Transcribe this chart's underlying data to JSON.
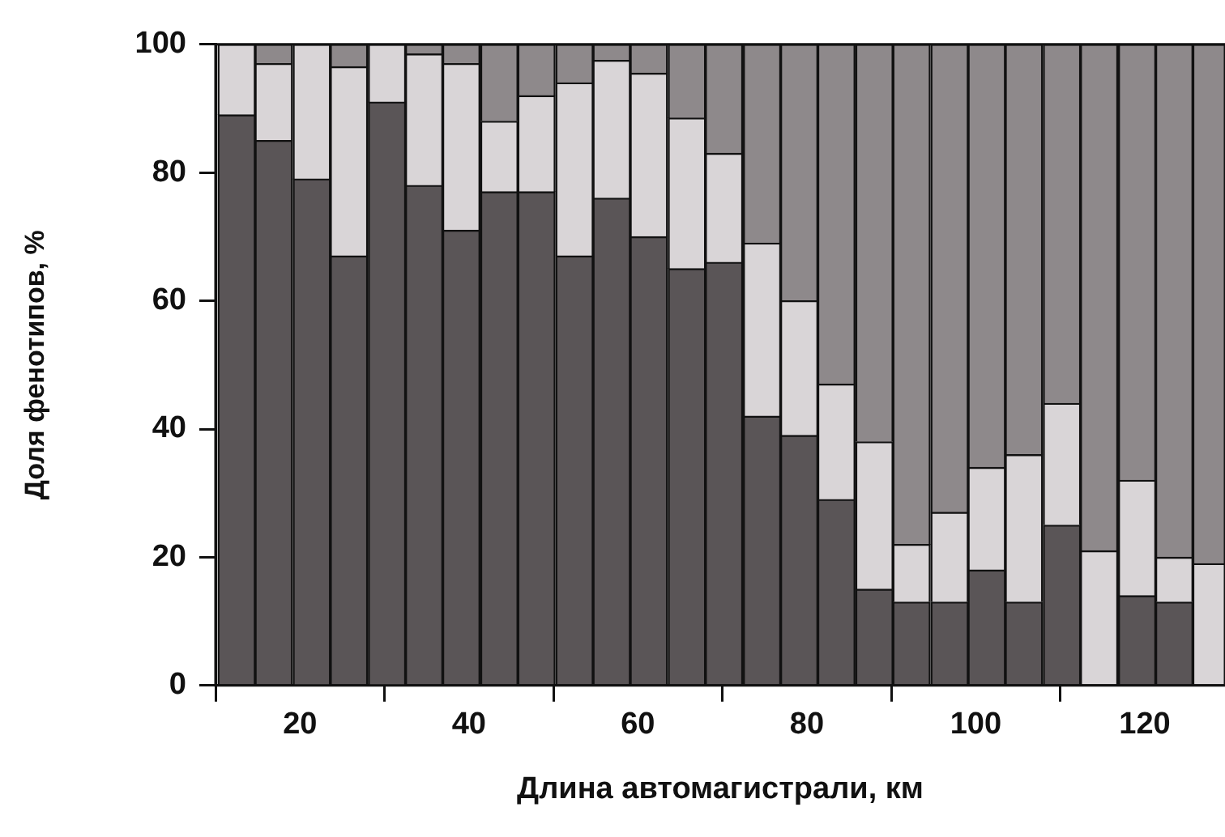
{
  "chart_data": {
    "type": "bar",
    "stacked": true,
    "xlabel": "Длина автомагистрали, км",
    "ylabel": "Доля фенотипов, %",
    "x": [
      12.5,
      16.9,
      21.4,
      25.8,
      30.3,
      34.7,
      39.1,
      43.6,
      48.0,
      52.5,
      56.9,
      61.3,
      65.8,
      70.2,
      74.7,
      79.1,
      83.5,
      88.0,
      92.4,
      96.9,
      101.3,
      105.7,
      110.2,
      114.6,
      119.1,
      123.5,
      127.9
    ],
    "series": [
      {
        "color": "#5a5557",
        "values": [
          89,
          85,
          79,
          67,
          91,
          78,
          71,
          77,
          77,
          67,
          76,
          70,
          65,
          66,
          42,
          39,
          29,
          15,
          13,
          13,
          18,
          13,
          25,
          null,
          14,
          13,
          null
        ]
      },
      {
        "color": "#d9d5d7",
        "values": [
          11,
          12,
          21,
          29.5,
          9,
          20.5,
          26,
          11,
          15,
          27,
          21.5,
          25.5,
          23.5,
          17,
          27,
          21,
          18,
          23,
          9,
          14,
          16,
          23,
          19,
          21,
          18,
          7,
          19
        ]
      },
      {
        "color": "#8e898b",
        "values": [
          null,
          3,
          null,
          3.5,
          null,
          1.5,
          3,
          12,
          8,
          6,
          2.5,
          4.5,
          11.5,
          17,
          31,
          40,
          53,
          62,
          78,
          73,
          66,
          64,
          56,
          79,
          68,
          80,
          81
        ]
      }
    ],
    "xlim": [
      10,
      129.5
    ],
    "xticks": [
      20,
      40,
      60,
      80,
      100,
      120
    ],
    "ylim": [
      0,
      100
    ],
    "yticks": [
      0,
      20,
      40,
      60,
      80,
      100
    ],
    "grid": false,
    "legend": false
  }
}
